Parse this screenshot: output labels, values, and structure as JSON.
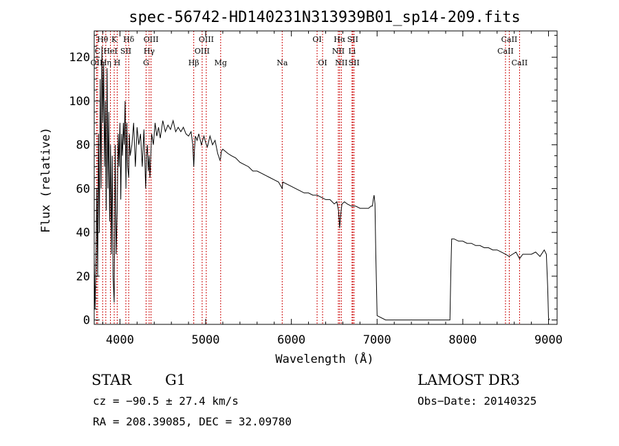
{
  "chart_data": {
    "type": "line",
    "title": "spec-56742-HD140231N313939B01_sp14-209.fits",
    "xlabel": "Wavelength (Å)",
    "ylabel": "Flux (relative)",
    "xlim": [
      3700,
      9100
    ],
    "ylim": [
      -2,
      132
    ],
    "xticks": [
      4000,
      5000,
      6000,
      7000,
      8000,
      9000
    ],
    "yticks": [
      0,
      20,
      40,
      60,
      80,
      100,
      120
    ],
    "grid": false,
    "legend": "none",
    "series": [
      {
        "name": "flux",
        "color": "#000000",
        "x": [
          3700,
          3710,
          3720,
          3730,
          3740,
          3750,
          3760,
          3770,
          3780,
          3790,
          3800,
          3810,
          3820,
          3830,
          3840,
          3850,
          3860,
          3870,
          3880,
          3890,
          3900,
          3910,
          3920,
          3933,
          3945,
          3955,
          3968,
          3980,
          3990,
          4000,
          4010,
          4020,
          4030,
          4040,
          4050,
          4060,
          4070,
          4080,
          4090,
          4102,
          4110,
          4120,
          4140,
          4160,
          4180,
          4200,
          4220,
          4240,
          4260,
          4280,
          4300,
          4310,
          4320,
          4330,
          4340,
          4350,
          4370,
          4390,
          4410,
          4430,
          4450,
          4470,
          4500,
          4530,
          4560,
          4590,
          4620,
          4650,
          4680,
          4710,
          4740,
          4770,
          4800,
          4830,
          4850,
          4861,
          4870,
          4880,
          4900,
          4920,
          4950,
          4980,
          5000,
          5020,
          5050,
          5080,
          5110,
          5140,
          5167,
          5175,
          5183,
          5200,
          5230,
          5260,
          5300,
          5350,
          5400,
          5450,
          5500,
          5550,
          5600,
          5650,
          5700,
          5750,
          5800,
          5850,
          5893,
          5900,
          5950,
          6000,
          6050,
          6100,
          6150,
          6200,
          6250,
          6300,
          6350,
          6400,
          6450,
          6500,
          6530,
          6550,
          6563,
          6575,
          6590,
          6620,
          6650,
          6700,
          6750,
          6800,
          6850,
          6900,
          6930,
          6945,
          6955,
          6965,
          6975,
          6985,
          7000,
          7100,
          7200,
          7300,
          7400,
          7500,
          7600,
          7700,
          7800,
          7850,
          7860,
          7870,
          7900,
          7950,
          8000,
          8050,
          8100,
          8150,
          8200,
          8250,
          8300,
          8350,
          8400,
          8450,
          8500,
          8540,
          8580,
          8620,
          8662,
          8700,
          8750,
          8800,
          8850,
          8900,
          8950,
          8975,
          8990,
          9000,
          9010
        ],
        "y": [
          30,
          5,
          25,
          60,
          20,
          85,
          40,
          110,
          60,
          125,
          90,
          118,
          70,
          100,
          50,
          115,
          60,
          95,
          45,
          80,
          30,
          75,
          20,
          8,
          80,
          30,
          50,
          85,
          70,
          90,
          55,
          85,
          75,
          90,
          80,
          100,
          60,
          90,
          70,
          65,
          85,
          75,
          80,
          90,
          70,
          88,
          80,
          85,
          70,
          87,
          60,
          75,
          80,
          68,
          75,
          65,
          85,
          80,
          90,
          84,
          88,
          83,
          91,
          86,
          89,
          87,
          91,
          86,
          88,
          86,
          88,
          85,
          84,
          86,
          80,
          70,
          78,
          84,
          82,
          85,
          80,
          84,
          81,
          79,
          84,
          80,
          82,
          76,
          73,
          74,
          77,
          78,
          77,
          76,
          75,
          74,
          72,
          71,
          70,
          68,
          68,
          67,
          66,
          65,
          64,
          63,
          60,
          63,
          62,
          61,
          60,
          59,
          58,
          58,
          57,
          57,
          56,
          55,
          55,
          53,
          54,
          50,
          42,
          48,
          53,
          54,
          53,
          52,
          52,
          51,
          51,
          51,
          52,
          52,
          55,
          57,
          53,
          30,
          2,
          0,
          0,
          0,
          0,
          0,
          0,
          0,
          0,
          0,
          22,
          37,
          37,
          36,
          36,
          35,
          35,
          34,
          34,
          33,
          33,
          32,
          32,
          31,
          30,
          29,
          30,
          31,
          28,
          30,
          30,
          30,
          31,
          29,
          32,
          30,
          15,
          1,
          0
        ]
      }
    ],
    "line_markers": [
      {
        "name": "Hθ",
        "x": 3798,
        "row": 1
      },
      {
        "name": "K",
        "x": 3933,
        "row": 1
      },
      {
        "name": "Hδ",
        "x": 4102,
        "row": 1
      },
      {
        "name": "OIII",
        "x": 4363,
        "row": 1
      },
      {
        "name": "OIII",
        "x": 5007,
        "row": 1
      },
      {
        "name": "OI",
        "x": 6300,
        "row": 1
      },
      {
        "name": "Hα",
        "x": 6563,
        "row": 1
      },
      {
        "name": "SII",
        "x": 6716,
        "row": 1
      },
      {
        "name": "CaII",
        "x": 8542,
        "row": 1
      },
      {
        "name": "C",
        "x": 3740,
        "row": 2
      },
      {
        "name": "HeI",
        "x": 3889,
        "row": 2
      },
      {
        "name": "SII",
        "x": 4069,
        "row": 2
      },
      {
        "name": "Hγ",
        "x": 4341,
        "row": 2
      },
      {
        "name": "OIII",
        "x": 4959,
        "row": 2
      },
      {
        "name": "NII",
        "x": 6548,
        "row": 2
      },
      {
        "name": "Li",
        "x": 6708,
        "row": 2
      },
      {
        "name": "CaII",
        "x": 8498,
        "row": 2
      },
      {
        "name": "OII",
        "x": 3727,
        "row": 3
      },
      {
        "name": "Hη",
        "x": 3835,
        "row": 3
      },
      {
        "name": "H",
        "x": 3968,
        "row": 3
      },
      {
        "name": "G",
        "x": 4305,
        "row": 3
      },
      {
        "name": "Hβ",
        "x": 4861,
        "row": 3
      },
      {
        "name": "Mg",
        "x": 5175,
        "row": 3
      },
      {
        "name": "Na",
        "x": 5893,
        "row": 3
      },
      {
        "name": "OI",
        "x": 6364,
        "row": 3
      },
      {
        "name": "NII",
        "x": 6583,
        "row": 3
      },
      {
        "name": "SII",
        "x": 6731,
        "row": 3
      },
      {
        "name": "CaII",
        "x": 8662,
        "row": 3
      }
    ],
    "marker_color": "#cc0000"
  },
  "info": {
    "class_label": "STAR",
    "subclass": "G1",
    "survey": "LAMOST DR3",
    "redshift": "cz = −90.5 ± 27.4 km/s",
    "obs_date": "Obs−Date: 20140325",
    "coords": "RA = 208.39085, DEC =  32.09780"
  }
}
